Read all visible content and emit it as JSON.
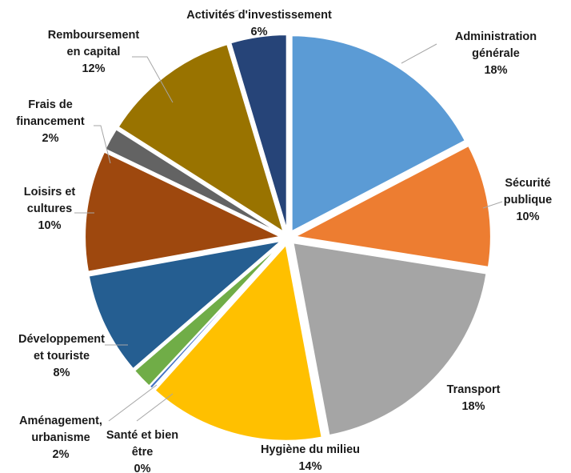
{
  "chart_data": {
    "type": "pie",
    "exploded": true,
    "legend": "none",
    "data_labels": "outside with leader lines",
    "slices": [
      {
        "name": "Administration générale",
        "label_lines": [
          "Administration",
          "générale"
        ],
        "pct_label": "18%",
        "value": 18,
        "color": "#5b9bd5"
      },
      {
        "name": "Sécurité publique",
        "label_lines": [
          "Sécurité",
          "publique"
        ],
        "pct_label": "10%",
        "value": 10,
        "color": "#ed7d31"
      },
      {
        "name": "Transport",
        "label_lines": [
          "Transport"
        ],
        "pct_label": "18%",
        "value": 18,
        "color": "#a5a5a5"
      },
      {
        "name": "Hygiène du milieu",
        "label_lines": [
          "Hygiène du milieu"
        ],
        "pct_label": "14%",
        "value": 14,
        "color": "#ffc000"
      },
      {
        "name": "Santé et bien être",
        "label_lines": [
          "Santé et bien",
          "être"
        ],
        "pct_label": "0%",
        "value": 0,
        "color": "#4472c4"
      },
      {
        "name": "Aménagement, urbanisme",
        "label_lines": [
          "Aménagement,",
          "urbanisme"
        ],
        "pct_label": "2%",
        "value": 2,
        "color": "#70ad47"
      },
      {
        "name": "Développement et touriste",
        "label_lines": [
          "Développement",
          "et touriste"
        ],
        "pct_label": "8%",
        "value": 8,
        "color": "#255e91"
      },
      {
        "name": "Loisirs et cultures",
        "label_lines": [
          "Loisirs et",
          "cultures"
        ],
        "pct_label": "10%",
        "value": 10,
        "color": "#9e480e"
      },
      {
        "name": "Frais de financement",
        "label_lines": [
          "Frais de",
          "financement"
        ],
        "pct_label": "2%",
        "value": 2,
        "color": "#636363"
      },
      {
        "name": "Remboursement en capital",
        "label_lines": [
          "Remboursement",
          "en capital"
        ],
        "pct_label": "12%",
        "value": 12,
        "color": "#997300"
      },
      {
        "name": "Activités d'investissement",
        "label_lines": [
          "Activités d'investissement"
        ],
        "pct_label": "6%",
        "value": 6,
        "color": "#264478"
      }
    ]
  }
}
